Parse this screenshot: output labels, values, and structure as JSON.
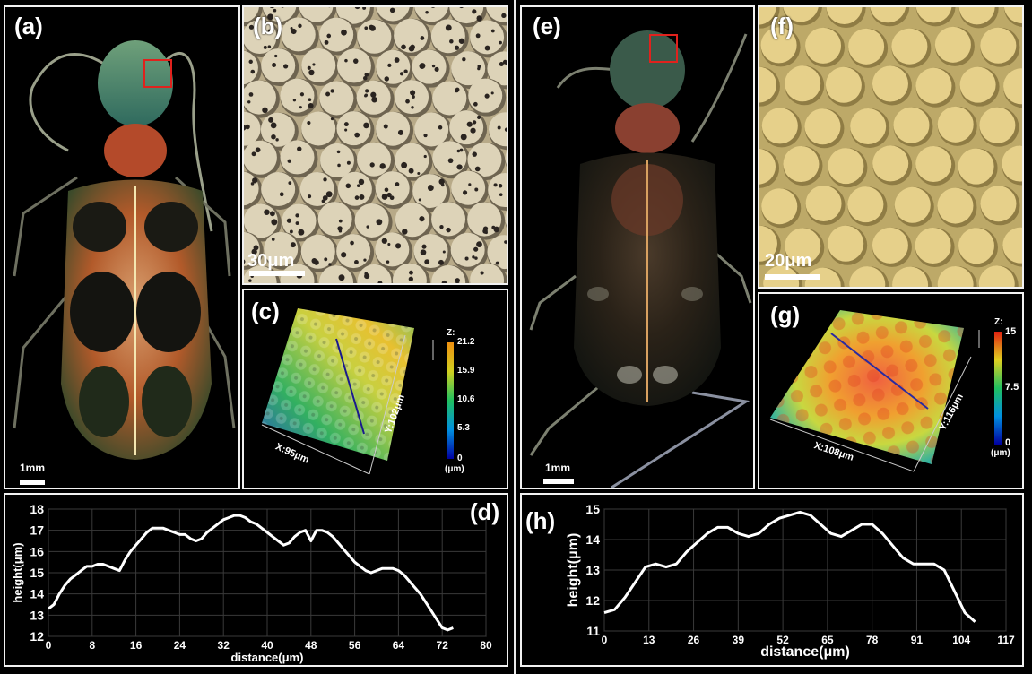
{
  "left": {
    "a": {
      "label": "(a)",
      "scale": "1mm"
    },
    "b": {
      "label": "(b)",
      "scale": "30μm"
    },
    "c": {
      "label": "(c)",
      "z_title": "Z:",
      "z_ticks": [
        "21.2",
        "15.9",
        "10.6",
        "5.3",
        "0"
      ],
      "z_unit": "(μm)",
      "x_axis": "X:95μm",
      "y_axis": "Y:102μm"
    },
    "d": {
      "label": "(d)"
    }
  },
  "right": {
    "e": {
      "label": "(e)",
      "scale": "1mm"
    },
    "f": {
      "label": "(f)",
      "scale": "20μm"
    },
    "g": {
      "label": "(g)",
      "z_title": "Z:",
      "z_ticks": [
        "15",
        "7.5",
        "0"
      ],
      "z_unit": "(μm)",
      "x_axis": "X:108μm",
      "y_axis": "Y:116μm"
    },
    "h": {
      "label": "(h)"
    }
  },
  "chart_data": [
    {
      "type": "line",
      "panel": "d",
      "xlabel": "distance(μm)",
      "ylabel": "height(μm)",
      "xlim": [
        0,
        80
      ],
      "ylim": [
        12,
        18
      ],
      "xticks": [
        0,
        8,
        16,
        24,
        32,
        40,
        48,
        56,
        64,
        72,
        80
      ],
      "yticks": [
        12,
        13,
        14,
        15,
        16,
        17,
        18
      ],
      "grid": true,
      "x": [
        0,
        1,
        2,
        3,
        4,
        5,
        6,
        7,
        8,
        9,
        10,
        11,
        12,
        13,
        14,
        15,
        16,
        17,
        18,
        19,
        20,
        21,
        22,
        23,
        24,
        25,
        26,
        27,
        28,
        29,
        30,
        31,
        32,
        33,
        34,
        35,
        36,
        37,
        38,
        39,
        40,
        41,
        42,
        43,
        44,
        45,
        46,
        47,
        48,
        49,
        50,
        51,
        52,
        53,
        54,
        55,
        56,
        57,
        58,
        59,
        60,
        61,
        62,
        63,
        64,
        65,
        66,
        67,
        68,
        69,
        70,
        71,
        72,
        73,
        74
      ],
      "y": [
        13.3,
        13.5,
        14.0,
        14.4,
        14.7,
        14.9,
        15.1,
        15.3,
        15.3,
        15.4,
        15.4,
        15.3,
        15.2,
        15.1,
        15.6,
        16.0,
        16.3,
        16.6,
        16.9,
        17.1,
        17.1,
        17.1,
        17.0,
        16.9,
        16.8,
        16.8,
        16.6,
        16.5,
        16.6,
        16.9,
        17.1,
        17.3,
        17.5,
        17.6,
        17.7,
        17.7,
        17.6,
        17.4,
        17.3,
        17.1,
        16.9,
        16.7,
        16.5,
        16.3,
        16.4,
        16.7,
        16.9,
        17.0,
        16.5,
        17.0,
        17.0,
        16.9,
        16.7,
        16.4,
        16.1,
        15.8,
        15.5,
        15.3,
        15.1,
        15.0,
        15.1,
        15.2,
        15.2,
        15.2,
        15.1,
        14.9,
        14.6,
        14.3,
        14.0,
        13.6,
        13.2,
        12.8,
        12.4,
        12.3,
        12.4
      ]
    },
    {
      "type": "line",
      "panel": "h",
      "xlabel": "distance(μm)",
      "ylabel": "height(μm)",
      "xlim": [
        0,
        117
      ],
      "ylim": [
        11,
        15
      ],
      "xticks": [
        0,
        13,
        26,
        39,
        52,
        65,
        78,
        91,
        104,
        117
      ],
      "yticks": [
        11,
        12,
        13,
        14,
        15
      ],
      "grid": true,
      "x": [
        0,
        3,
        6,
        9,
        12,
        15,
        18,
        21,
        24,
        27,
        30,
        33,
        36,
        39,
        42,
        45,
        48,
        51,
        54,
        57,
        60,
        63,
        66,
        69,
        72,
        75,
        78,
        81,
        84,
        87,
        90,
        93,
        96,
        99,
        102,
        105,
        108
      ],
      "y": [
        11.6,
        11.7,
        12.1,
        12.6,
        13.1,
        13.2,
        13.1,
        13.2,
        13.6,
        13.9,
        14.2,
        14.4,
        14.4,
        14.2,
        14.1,
        14.2,
        14.5,
        14.7,
        14.8,
        14.9,
        14.8,
        14.5,
        14.2,
        14.1,
        14.3,
        14.5,
        14.5,
        14.2,
        13.8,
        13.4,
        13.2,
        13.2,
        13.2,
        13.0,
        12.3,
        11.6,
        11.3
      ]
    }
  ]
}
